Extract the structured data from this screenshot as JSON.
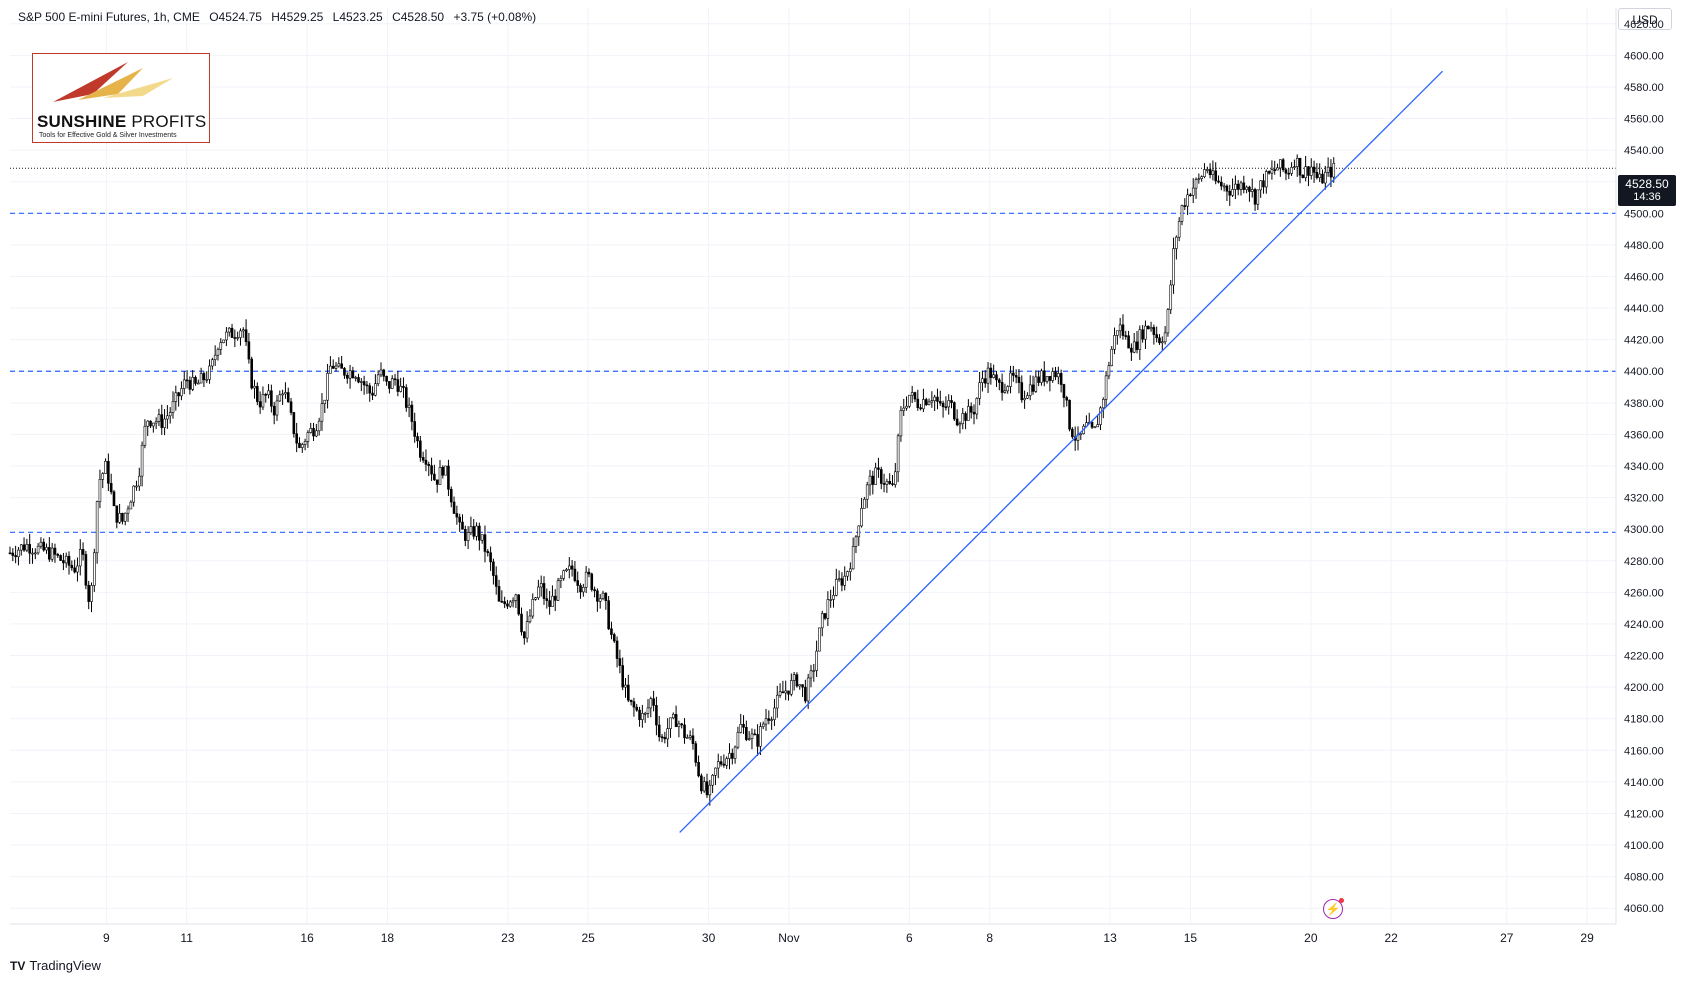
{
  "header": {
    "symbol": "S&P 500 E-mini Futures, 1h, CME",
    "open": "O4524.75",
    "high": "H4529.25",
    "low": "L4523.25",
    "close": "C4528.50",
    "change": "+3.75 (+0.08%)"
  },
  "logo": {
    "brand_bold": "SUNSHINE",
    "brand_light": "PROFITS",
    "tagline": "Tools for Effective Gold & Silver Investments"
  },
  "footer": {
    "brand_mark": "TV",
    "brand": "TradingView"
  },
  "currency": "USD",
  "last_price": {
    "price": "4528.50",
    "countdown": "14:36"
  },
  "icons": {
    "alert": "lightning-icon"
  },
  "colors": {
    "candle": "#000000",
    "trendline": "#2962ff",
    "hline": "#2962ff",
    "grid": "#f0f3fa"
  },
  "chart_data": {
    "type": "candlestick",
    "y_axis": {
      "ylim": [
        4050,
        4630
      ],
      "ticks": [
        "4620.00",
        "4600.00",
        "4580.00",
        "4560.00",
        "4540.00",
        "4520.00",
        "4500.00",
        "4480.00",
        "4460.00",
        "4440.00",
        "4420.00",
        "4400.00",
        "4380.00",
        "4360.00",
        "4340.00",
        "4320.00",
        "4300.00",
        "4280.00",
        "4260.00",
        "4240.00",
        "4220.00",
        "4200.00",
        "4180.00",
        "4160.00",
        "4140.00",
        "4120.00",
        "4100.00",
        "4080.00",
        "4060.00"
      ],
      "tick_values": [
        4620,
        4600,
        4580,
        4560,
        4540,
        4520,
        4500,
        4480,
        4460,
        4440,
        4420,
        4400,
        4380,
        4360,
        4340,
        4320,
        4300,
        4280,
        4260,
        4240,
        4220,
        4200,
        4180,
        4160,
        4140,
        4120,
        4100,
        4080,
        4060
      ],
      "position": "right"
    },
    "x_axis": {
      "ticks": [
        "9",
        "11",
        "16",
        "18",
        "23",
        "25",
        "30",
        "Nov",
        "6",
        "8",
        "13",
        "15",
        "20",
        "22",
        "27",
        "29"
      ],
      "tick_positions": [
        0.06,
        0.11,
        0.185,
        0.235,
        0.31,
        0.36,
        0.435,
        0.485,
        0.56,
        0.61,
        0.685,
        0.735,
        0.81,
        0.86,
        0.932,
        0.982
      ]
    },
    "path": [
      [
        0.0,
        4285
      ],
      [
        0.01,
        4290
      ],
      [
        0.025,
        4285
      ],
      [
        0.04,
        4275
      ],
      [
        0.045,
        4285
      ],
      [
        0.05,
        4250
      ],
      [
        0.055,
        4330
      ],
      [
        0.06,
        4340
      ],
      [
        0.065,
        4310
      ],
      [
        0.07,
        4305
      ],
      [
        0.075,
        4320
      ],
      [
        0.08,
        4335
      ],
      [
        0.085,
        4370
      ],
      [
        0.095,
        4368
      ],
      [
        0.1,
        4375
      ],
      [
        0.105,
        4385
      ],
      [
        0.11,
        4395
      ],
      [
        0.115,
        4390
      ],
      [
        0.12,
        4395
      ],
      [
        0.125,
        4400
      ],
      [
        0.13,
        4420
      ],
      [
        0.14,
        4425
      ],
      [
        0.145,
        4428
      ],
      [
        0.15,
        4395
      ],
      [
        0.155,
        4380
      ],
      [
        0.16,
        4385
      ],
      [
        0.165,
        4375
      ],
      [
        0.17,
        4390
      ],
      [
        0.175,
        4370
      ],
      [
        0.18,
        4350
      ],
      [
        0.185,
        4360
      ],
      [
        0.19,
        4365
      ],
      [
        0.195,
        4380
      ],
      [
        0.2,
        4405
      ],
      [
        0.205,
        4400
      ],
      [
        0.215,
        4400
      ],
      [
        0.225,
        4385
      ],
      [
        0.23,
        4400
      ],
      [
        0.235,
        4390
      ],
      [
        0.24,
        4395
      ],
      [
        0.245,
        4385
      ],
      [
        0.25,
        4370
      ],
      [
        0.255,
        4350
      ],
      [
        0.26,
        4345
      ],
      [
        0.265,
        4330
      ],
      [
        0.27,
        4340
      ],
      [
        0.275,
        4320
      ],
      [
        0.28,
        4300
      ],
      [
        0.285,
        4295
      ],
      [
        0.29,
        4300
      ],
      [
        0.295,
        4290
      ],
      [
        0.3,
        4275
      ],
      [
        0.305,
        4250
      ],
      [
        0.31,
        4255
      ],
      [
        0.315,
        4260
      ],
      [
        0.32,
        4230
      ],
      [
        0.325,
        4250
      ],
      [
        0.33,
        4265
      ],
      [
        0.335,
        4250
      ],
      [
        0.34,
        4260
      ],
      [
        0.345,
        4270
      ],
      [
        0.35,
        4275
      ],
      [
        0.355,
        4265
      ],
      [
        0.36,
        4270
      ],
      [
        0.365,
        4260
      ],
      [
        0.37,
        4255
      ],
      [
        0.375,
        4230
      ],
      [
        0.38,
        4210
      ],
      [
        0.385,
        4190
      ],
      [
        0.39,
        4185
      ],
      [
        0.395,
        4180
      ],
      [
        0.4,
        4195
      ],
      [
        0.405,
        4165
      ],
      [
        0.41,
        4175
      ],
      [
        0.415,
        4180
      ],
      [
        0.42,
        4170
      ],
      [
        0.425,
        4165
      ],
      [
        0.43,
        4140
      ],
      [
        0.435,
        4130
      ],
      [
        0.44,
        4150
      ],
      [
        0.445,
        4155
      ],
      [
        0.45,
        4160
      ],
      [
        0.455,
        4175
      ],
      [
        0.46,
        4170
      ],
      [
        0.465,
        4165
      ],
      [
        0.47,
        4180
      ],
      [
        0.475,
        4185
      ],
      [
        0.48,
        4195
      ],
      [
        0.485,
        4200
      ],
      [
        0.49,
        4205
      ],
      [
        0.495,
        4195
      ],
      [
        0.5,
        4210
      ],
      [
        0.505,
        4240
      ],
      [
        0.51,
        4255
      ],
      [
        0.515,
        4265
      ],
      [
        0.52,
        4270
      ],
      [
        0.525,
        4285
      ],
      [
        0.53,
        4315
      ],
      [
        0.535,
        4330
      ],
      [
        0.54,
        4335
      ],
      [
        0.545,
        4330
      ],
      [
        0.55,
        4325
      ],
      [
        0.555,
        4375
      ],
      [
        0.56,
        4385
      ],
      [
        0.565,
        4380
      ],
      [
        0.575,
        4385
      ],
      [
        0.58,
        4375
      ],
      [
        0.585,
        4380
      ],
      [
        0.59,
        4370
      ],
      [
        0.6,
        4375
      ],
      [
        0.605,
        4395
      ],
      [
        0.61,
        4400
      ],
      [
        0.615,
        4390
      ],
      [
        0.625,
        4395
      ],
      [
        0.63,
        4385
      ],
      [
        0.64,
        4395
      ],
      [
        0.65,
        4400
      ],
      [
        0.655,
        4395
      ],
      [
        0.66,
        4365
      ],
      [
        0.665,
        4355
      ],
      [
        0.67,
        4365
      ],
      [
        0.675,
        4360
      ],
      [
        0.68,
        4380
      ],
      [
        0.685,
        4410
      ],
      [
        0.69,
        4430
      ],
      [
        0.695,
        4420
      ],
      [
        0.7,
        4415
      ],
      [
        0.705,
        4425
      ],
      [
        0.71,
        4430
      ],
      [
        0.715,
        4420
      ],
      [
        0.72,
        4425
      ],
      [
        0.725,
        4480
      ],
      [
        0.73,
        4505
      ],
      [
        0.735,
        4515
      ],
      [
        0.74,
        4520
      ],
      [
        0.745,
        4530
      ],
      [
        0.75,
        4520
      ],
      [
        0.76,
        4515
      ],
      [
        0.77,
        4520
      ],
      [
        0.775,
        4510
      ],
      [
        0.78,
        4520
      ],
      [
        0.785,
        4525
      ],
      [
        0.79,
        4530
      ],
      [
        0.795,
        4525
      ],
      [
        0.8,
        4535
      ],
      [
        0.805,
        4525
      ],
      [
        0.81,
        4530
      ],
      [
        0.815,
        4520
      ],
      [
        0.82,
        4525
      ],
      [
        0.825,
        4528.5
      ]
    ],
    "trendline": [
      [
        0.417,
        4108
      ],
      [
        0.892,
        4590
      ]
    ],
    "horizontal_lines": [
      4500,
      4400,
      4298
    ],
    "last_price_line": 4528.5
  }
}
